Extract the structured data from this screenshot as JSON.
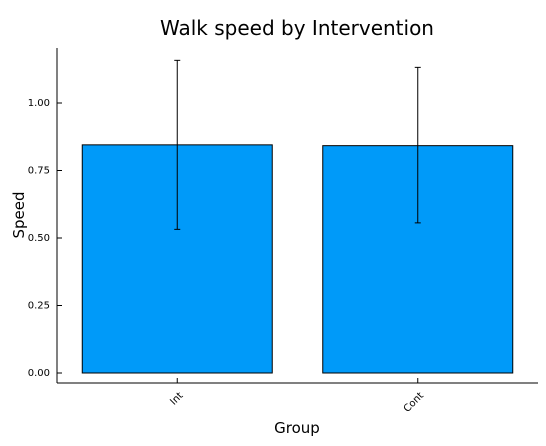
{
  "chart_data": {
    "type": "bar",
    "title": "Walk speed by Intervention",
    "xlabel": "Group",
    "ylabel": "Speed",
    "categories": [
      "Int",
      "Cont"
    ],
    "values": [
      0.845,
      0.842
    ],
    "error_bars": [
      {
        "low": 0.532,
        "high": 1.158
      },
      {
        "low": 0.556,
        "high": 1.132
      }
    ],
    "yticks": [
      0.0,
      0.25,
      0.5,
      0.75,
      1.0
    ],
    "ytick_labels": [
      "0.00",
      "0.25",
      "0.50",
      "0.75",
      "1.00"
    ],
    "ylim": [
      -0.03,
      1.2
    ],
    "grid": false,
    "legend": "none",
    "bar_color": "#009af9",
    "edge_color": "#000000"
  }
}
